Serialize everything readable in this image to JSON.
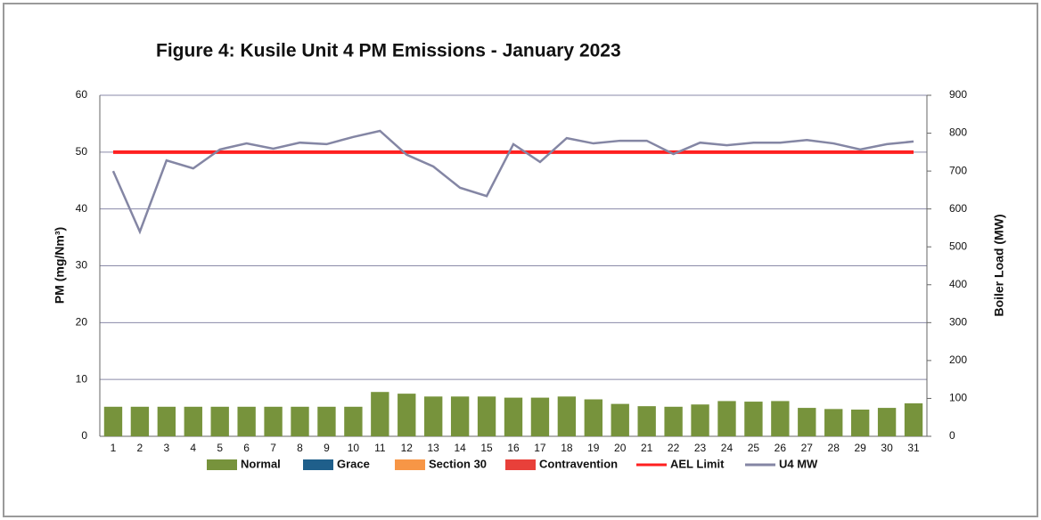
{
  "chart_data": {
    "type": "bar",
    "title": "Figure 4: Kusile Unit 4 PM Emissions -  January 2023",
    "y_label": "PM (mg/Nm³)",
    "y2_label": "Boiler Load (MW)",
    "categories": [
      "1",
      "2",
      "3",
      "4",
      "5",
      "6",
      "7",
      "8",
      "9",
      "10",
      "11",
      "12",
      "13",
      "14",
      "15",
      "16",
      "17",
      "18",
      "19",
      "20",
      "21",
      "22",
      "23",
      "24",
      "25",
      "26",
      "27",
      "28",
      "29",
      "30",
      "31"
    ],
    "series": [
      {
        "name": "Normal",
        "type": "bar",
        "color": "#77933c",
        "values": [
          5.2,
          5.2,
          5.2,
          5.2,
          5.2,
          5.2,
          5.2,
          5.2,
          5.2,
          5.2,
          7.8,
          7.5,
          7.0,
          7.0,
          7.0,
          6.8,
          6.8,
          7.0,
          6.5,
          5.7,
          5.3,
          5.2,
          5.6,
          6.2,
          6.1,
          6.2,
          5.0,
          4.8,
          4.7,
          5.0,
          5.8
        ]
      },
      {
        "name": "Grace",
        "type": "bar",
        "color": "#1f5f8b",
        "values": [
          0,
          0,
          0,
          0,
          0,
          0,
          0,
          0,
          0,
          0,
          0,
          0,
          0,
          0,
          0,
          0,
          0,
          0,
          0,
          0,
          0,
          0,
          0,
          0,
          0,
          0,
          0,
          0,
          0,
          0,
          0
        ]
      },
      {
        "name": "Section 30",
        "type": "bar",
        "color": "#f79646",
        "values": [
          0,
          0,
          0,
          0,
          0,
          0,
          0,
          0,
          0,
          0,
          0,
          0,
          0,
          0,
          0,
          0,
          0,
          0,
          0,
          0,
          0,
          0,
          0,
          0,
          0,
          0,
          0,
          0,
          0,
          0,
          0
        ]
      },
      {
        "name": "Contravention",
        "type": "bar",
        "color": "#e8403a",
        "values": [
          0,
          0,
          0,
          0,
          0,
          0,
          0,
          0,
          0,
          0,
          0,
          0,
          0,
          0,
          0,
          0,
          0,
          0,
          0,
          0,
          0,
          0,
          0,
          0,
          0,
          0,
          0,
          0,
          0,
          0,
          0
        ]
      },
      {
        "name": "AEL Limit",
        "type": "line",
        "color": "#ff2020",
        "values": [
          50,
          50,
          50,
          50,
          50,
          50,
          50,
          50,
          50,
          50,
          50,
          50,
          50,
          50,
          50,
          50,
          50,
          50,
          50,
          50,
          50,
          50,
          50,
          50,
          50,
          50,
          50,
          50,
          50,
          50,
          50
        ]
      },
      {
        "name": "U4 MW",
        "type": "line",
        "axis": "y2",
        "color": "#8486a4",
        "values": [
          700,
          540,
          728,
          707,
          757,
          773,
          759,
          775,
          771,
          790,
          806,
          743,
          712,
          656,
          634,
          771,
          724,
          787,
          773,
          780,
          780,
          745,
          775,
          768,
          775,
          775,
          782,
          773,
          757,
          771,
          778
        ]
      }
    ],
    "ylim": [
      0,
      60
    ],
    "yticks": [
      0,
      10,
      20,
      30,
      40,
      50,
      60
    ],
    "y2lim": [
      0,
      900
    ],
    "y2ticks": [
      0,
      100,
      200,
      300,
      400,
      500,
      600,
      700,
      800,
      900
    ],
    "grid": true,
    "legend": "bottom"
  }
}
